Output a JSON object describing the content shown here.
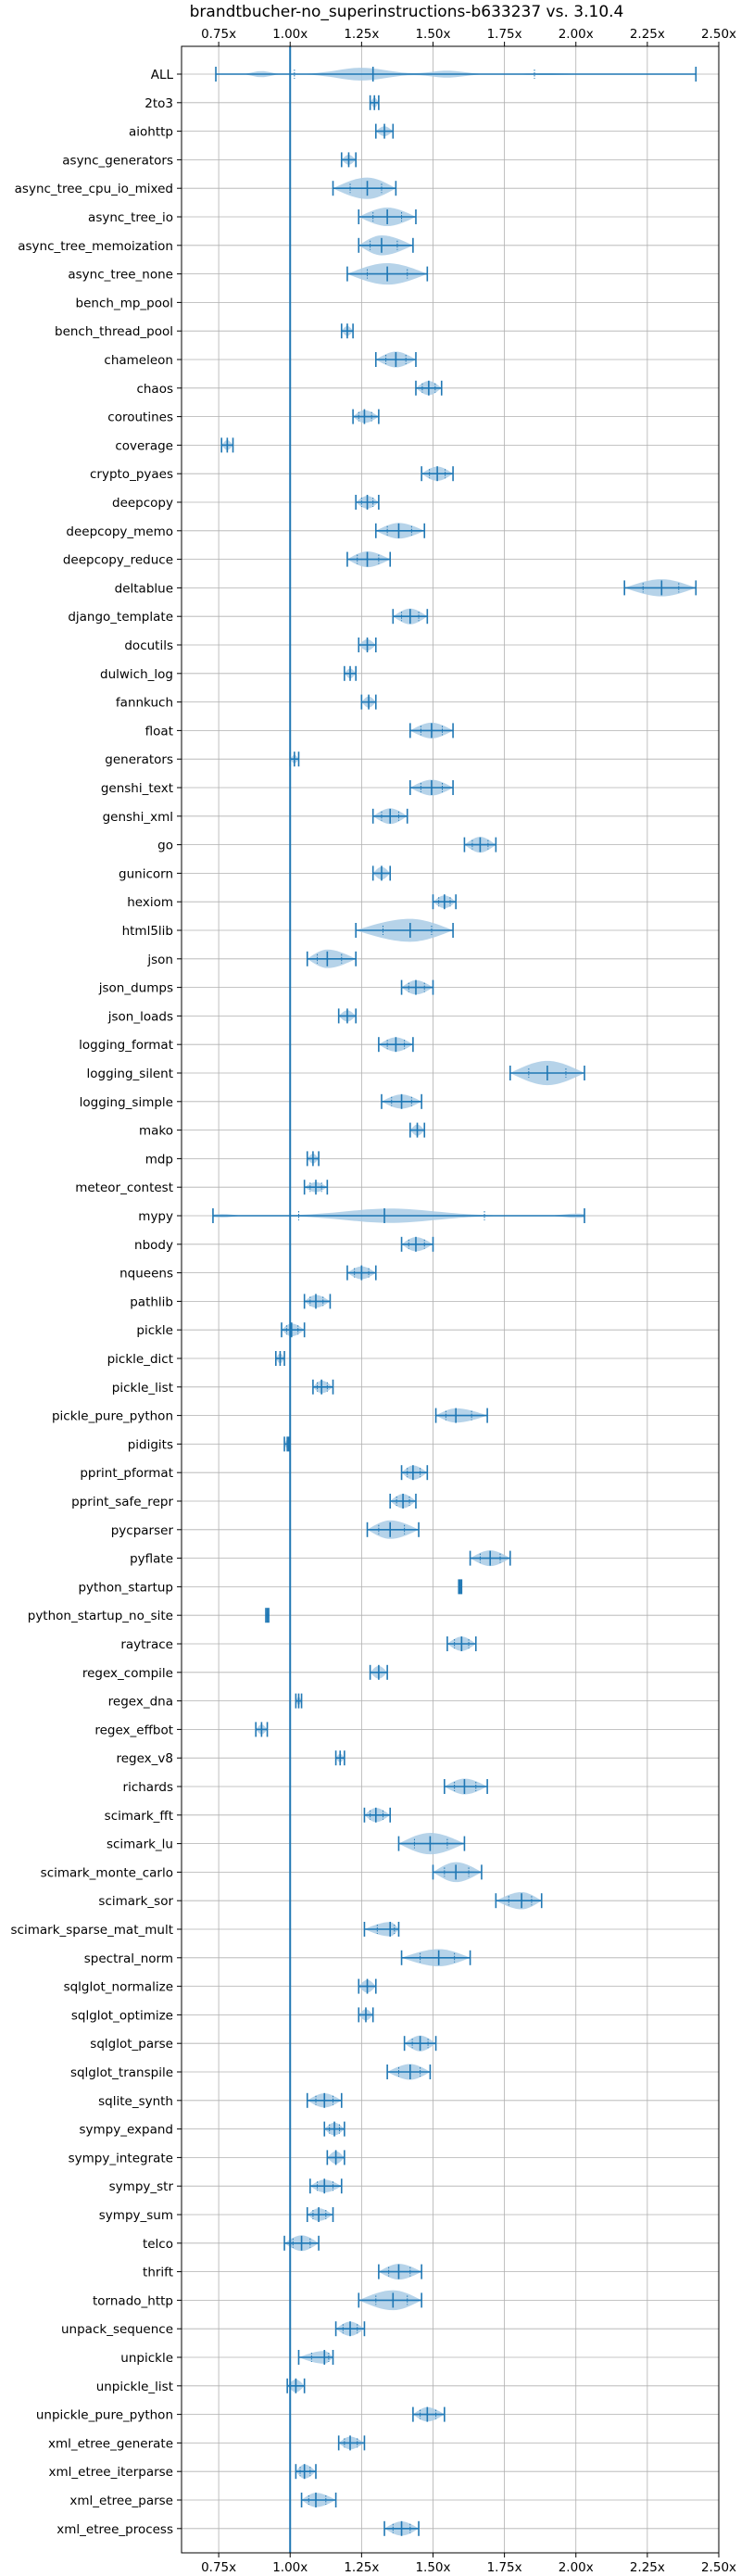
{
  "chart_data": {
    "type": "violin",
    "orientation": "horizontal",
    "title": "brandtbucher-no_superinstructions-b633237 vs. 3.10.4",
    "xlabel": "",
    "ylabel": "",
    "xlim": [
      0.62,
      2.5
    ],
    "x_ticks": [
      0.75,
      1.0,
      1.25,
      1.5,
      1.75,
      2.0,
      2.25,
      2.5
    ],
    "x_tick_labels": [
      "0.75x",
      "1.00x",
      "1.25x",
      "1.50x",
      "1.75x",
      "2.00x",
      "2.25x",
      "2.50x"
    ],
    "grid": true,
    "reference_line": 1.0,
    "colors": {
      "violin_fill": "#a9cbe5",
      "line": "#1f77b4",
      "grid": "#b0b0b0"
    },
    "benchmarks": [
      {
        "name": "ALL",
        "min": 0.74,
        "max": 2.42,
        "median": 1.29,
        "width": 0.45,
        "shape": "all"
      },
      {
        "name": "2to3",
        "min": 1.28,
        "max": 1.31,
        "median": 1.295,
        "width": 0.35
      },
      {
        "name": "aiohttp",
        "min": 1.3,
        "max": 1.36,
        "median": 1.33,
        "width": 0.35
      },
      {
        "name": "async_generators",
        "min": 1.18,
        "max": 1.23,
        "median": 1.205,
        "width": 0.35
      },
      {
        "name": "async_tree_cpu_io_mixed",
        "min": 1.15,
        "max": 1.37,
        "median": 1.27,
        "width": 0.75
      },
      {
        "name": "async_tree_io",
        "min": 1.24,
        "max": 1.44,
        "median": 1.34,
        "width": 0.65
      },
      {
        "name": "async_tree_memoization",
        "min": 1.24,
        "max": 1.43,
        "median": 1.32,
        "width": 0.7
      },
      {
        "name": "async_tree_none",
        "min": 1.2,
        "max": 1.48,
        "median": 1.34,
        "width": 0.75
      },
      {
        "name": "bench_mp_pool",
        "min": null,
        "max": null,
        "median": null,
        "width": 0
      },
      {
        "name": "bench_thread_pool",
        "min": 1.18,
        "max": 1.22,
        "median": 1.2,
        "width": 0.35
      },
      {
        "name": "chameleon",
        "min": 1.3,
        "max": 1.44,
        "median": 1.37,
        "width": 0.55
      },
      {
        "name": "chaos",
        "min": 1.44,
        "max": 1.53,
        "median": 1.485,
        "width": 0.5
      },
      {
        "name": "coroutines",
        "min": 1.22,
        "max": 1.31,
        "median": 1.26,
        "width": 0.45
      },
      {
        "name": "coverage",
        "min": 0.76,
        "max": 0.8,
        "median": 0.78,
        "width": 0.35
      },
      {
        "name": "crypto_pyaes",
        "min": 1.46,
        "max": 1.57,
        "median": 1.515,
        "width": 0.5
      },
      {
        "name": "deepcopy",
        "min": 1.23,
        "max": 1.31,
        "median": 1.27,
        "width": 0.45
      },
      {
        "name": "deepcopy_memo",
        "min": 1.3,
        "max": 1.47,
        "median": 1.38,
        "width": 0.55
      },
      {
        "name": "deepcopy_reduce",
        "min": 1.2,
        "max": 1.35,
        "median": 1.27,
        "width": 0.55
      },
      {
        "name": "deltablue",
        "min": 2.17,
        "max": 2.42,
        "median": 2.3,
        "width": 0.6
      },
      {
        "name": "django_template",
        "min": 1.36,
        "max": 1.48,
        "median": 1.42,
        "width": 0.55
      },
      {
        "name": "docutils",
        "min": 1.24,
        "max": 1.3,
        "median": 1.27,
        "width": 0.4
      },
      {
        "name": "dulwich_log",
        "min": 1.19,
        "max": 1.23,
        "median": 1.21,
        "width": 0.35
      },
      {
        "name": "fannkuch",
        "min": 1.25,
        "max": 1.3,
        "median": 1.275,
        "width": 0.4
      },
      {
        "name": "float",
        "min": 1.42,
        "max": 1.57,
        "median": 1.495,
        "width": 0.55
      },
      {
        "name": "generators",
        "min": 1.0,
        "max": 1.03,
        "median": 1.015,
        "width": 0.3
      },
      {
        "name": "genshi_text",
        "min": 1.42,
        "max": 1.57,
        "median": 1.495,
        "width": 0.55
      },
      {
        "name": "genshi_xml",
        "min": 1.29,
        "max": 1.41,
        "median": 1.35,
        "width": 0.55
      },
      {
        "name": "go",
        "min": 1.61,
        "max": 1.72,
        "median": 1.665,
        "width": 0.55
      },
      {
        "name": "gunicorn",
        "min": 1.29,
        "max": 1.35,
        "median": 1.32,
        "width": 0.45
      },
      {
        "name": "hexiom",
        "min": 1.5,
        "max": 1.58,
        "median": 1.54,
        "width": 0.45
      },
      {
        "name": "html5lib",
        "min": 1.23,
        "max": 1.57,
        "median": 1.42,
        "width": 0.8
      },
      {
        "name": "json",
        "min": 1.06,
        "max": 1.23,
        "median": 1.13,
        "width": 0.65
      },
      {
        "name": "json_dumps",
        "min": 1.39,
        "max": 1.5,
        "median": 1.44,
        "width": 0.5
      },
      {
        "name": "json_loads",
        "min": 1.17,
        "max": 1.23,
        "median": 1.2,
        "width": 0.4
      },
      {
        "name": "logging_format",
        "min": 1.31,
        "max": 1.43,
        "median": 1.37,
        "width": 0.5
      },
      {
        "name": "logging_silent",
        "min": 1.77,
        "max": 2.03,
        "median": 1.9,
        "width": 0.85
      },
      {
        "name": "logging_simple",
        "min": 1.32,
        "max": 1.46,
        "median": 1.39,
        "width": 0.5
      },
      {
        "name": "mako",
        "min": 1.42,
        "max": 1.47,
        "median": 1.445,
        "width": 0.4
      },
      {
        "name": "mdp",
        "min": 1.06,
        "max": 1.1,
        "median": 1.08,
        "width": 0.35
      },
      {
        "name": "meteor_contest",
        "min": 1.05,
        "max": 1.13,
        "median": 1.09,
        "width": 0.35
      },
      {
        "name": "mypy",
        "min": 0.73,
        "max": 2.03,
        "median": 1.33,
        "width": 0.5,
        "shape": "mypy"
      },
      {
        "name": "nbody",
        "min": 1.39,
        "max": 1.5,
        "median": 1.44,
        "width": 0.5
      },
      {
        "name": "nqueens",
        "min": 1.2,
        "max": 1.3,
        "median": 1.25,
        "width": 0.45
      },
      {
        "name": "pathlib",
        "min": 1.05,
        "max": 1.14,
        "median": 1.09,
        "width": 0.45
      },
      {
        "name": "pickle",
        "min": 0.97,
        "max": 1.05,
        "median": 1.005,
        "width": 0.45
      },
      {
        "name": "pickle_dict",
        "min": 0.95,
        "max": 0.98,
        "median": 0.965,
        "width": 0.35
      },
      {
        "name": "pickle_list",
        "min": 1.08,
        "max": 1.15,
        "median": 1.11,
        "width": 0.45
      },
      {
        "name": "pickle_pure_python",
        "min": 1.51,
        "max": 1.69,
        "median": 1.58,
        "width": 0.5
      },
      {
        "name": "pidigits",
        "min": 0.98,
        "max": 0.995,
        "median": 0.99,
        "width": 0.3
      },
      {
        "name": "pprint_pformat",
        "min": 1.39,
        "max": 1.48,
        "median": 1.43,
        "width": 0.5
      },
      {
        "name": "pprint_safe_repr",
        "min": 1.35,
        "max": 1.44,
        "median": 1.395,
        "width": 0.5
      },
      {
        "name": "pycparser",
        "min": 1.27,
        "max": 1.45,
        "median": 1.35,
        "width": 0.65
      },
      {
        "name": "pyflate",
        "min": 1.63,
        "max": 1.77,
        "median": 1.7,
        "width": 0.55
      },
      {
        "name": "python_startup",
        "min": 1.59,
        "max": 1.6,
        "median": 1.595,
        "width": 0.3
      },
      {
        "name": "python_startup_no_site",
        "min": 0.915,
        "max": 0.925,
        "median": 0.92,
        "width": 0.3
      },
      {
        "name": "raytrace",
        "min": 1.55,
        "max": 1.65,
        "median": 1.6,
        "width": 0.5
      },
      {
        "name": "regex_compile",
        "min": 1.28,
        "max": 1.34,
        "median": 1.31,
        "width": 0.45
      },
      {
        "name": "regex_dna",
        "min": 1.02,
        "max": 1.04,
        "median": 1.03,
        "width": 0.3
      },
      {
        "name": "regex_effbot",
        "min": 0.88,
        "max": 0.92,
        "median": 0.9,
        "width": 0.35
      },
      {
        "name": "regex_v8",
        "min": 1.16,
        "max": 1.19,
        "median": 1.175,
        "width": 0.3
      },
      {
        "name": "richards",
        "min": 1.54,
        "max": 1.69,
        "median": 1.61,
        "width": 0.55
      },
      {
        "name": "scimark_fft",
        "min": 1.26,
        "max": 1.35,
        "median": 1.3,
        "width": 0.5
      },
      {
        "name": "scimark_lu",
        "min": 1.38,
        "max": 1.61,
        "median": 1.49,
        "width": 0.75
      },
      {
        "name": "scimark_monte_carlo",
        "min": 1.5,
        "max": 1.67,
        "median": 1.58,
        "width": 0.7
      },
      {
        "name": "scimark_sor",
        "min": 1.72,
        "max": 1.88,
        "median": 1.81,
        "width": 0.6
      },
      {
        "name": "scimark_sparse_mat_mult",
        "min": 1.26,
        "max": 1.38,
        "median": 1.35,
        "width": 0.5
      },
      {
        "name": "spectral_norm",
        "min": 1.39,
        "max": 1.63,
        "median": 1.52,
        "width": 0.6
      },
      {
        "name": "sqlglot_normalize",
        "min": 1.24,
        "max": 1.3,
        "median": 1.27,
        "width": 0.45
      },
      {
        "name": "sqlglot_optimize",
        "min": 1.24,
        "max": 1.29,
        "median": 1.265,
        "width": 0.4
      },
      {
        "name": "sqlglot_parse",
        "min": 1.4,
        "max": 1.51,
        "median": 1.455,
        "width": 0.55
      },
      {
        "name": "sqlglot_transpile",
        "min": 1.34,
        "max": 1.49,
        "median": 1.42,
        "width": 0.55
      },
      {
        "name": "sqlite_synth",
        "min": 1.06,
        "max": 1.18,
        "median": 1.12,
        "width": 0.5
      },
      {
        "name": "sympy_expand",
        "min": 1.12,
        "max": 1.19,
        "median": 1.155,
        "width": 0.45
      },
      {
        "name": "sympy_integrate",
        "min": 1.13,
        "max": 1.19,
        "median": 1.16,
        "width": 0.45
      },
      {
        "name": "sympy_str",
        "min": 1.07,
        "max": 1.18,
        "median": 1.12,
        "width": 0.45
      },
      {
        "name": "sympy_sum",
        "min": 1.06,
        "max": 1.15,
        "median": 1.1,
        "width": 0.45
      },
      {
        "name": "telco",
        "min": 0.98,
        "max": 1.1,
        "median": 1.04,
        "width": 0.55
      },
      {
        "name": "thrift",
        "min": 1.31,
        "max": 1.46,
        "median": 1.38,
        "width": 0.55
      },
      {
        "name": "tornado_http",
        "min": 1.24,
        "max": 1.46,
        "median": 1.36,
        "width": 0.7
      },
      {
        "name": "unpack_sequence",
        "min": 1.16,
        "max": 1.26,
        "median": 1.21,
        "width": 0.5
      },
      {
        "name": "unpickle",
        "min": 1.03,
        "max": 1.15,
        "median": 1.12,
        "width": 0.45
      },
      {
        "name": "unpickle_list",
        "min": 0.99,
        "max": 1.05,
        "median": 1.02,
        "width": 0.45
      },
      {
        "name": "unpickle_pure_python",
        "min": 1.43,
        "max": 1.54,
        "median": 1.48,
        "width": 0.5
      },
      {
        "name": "xml_etree_generate",
        "min": 1.17,
        "max": 1.26,
        "median": 1.21,
        "width": 0.45
      },
      {
        "name": "xml_etree_iterparse",
        "min": 1.02,
        "max": 1.09,
        "median": 1.05,
        "width": 0.5
      },
      {
        "name": "xml_etree_parse",
        "min": 1.04,
        "max": 1.16,
        "median": 1.09,
        "width": 0.5
      },
      {
        "name": "xml_etree_process",
        "min": 1.33,
        "max": 1.45,
        "median": 1.39,
        "width": 0.5
      }
    ]
  }
}
